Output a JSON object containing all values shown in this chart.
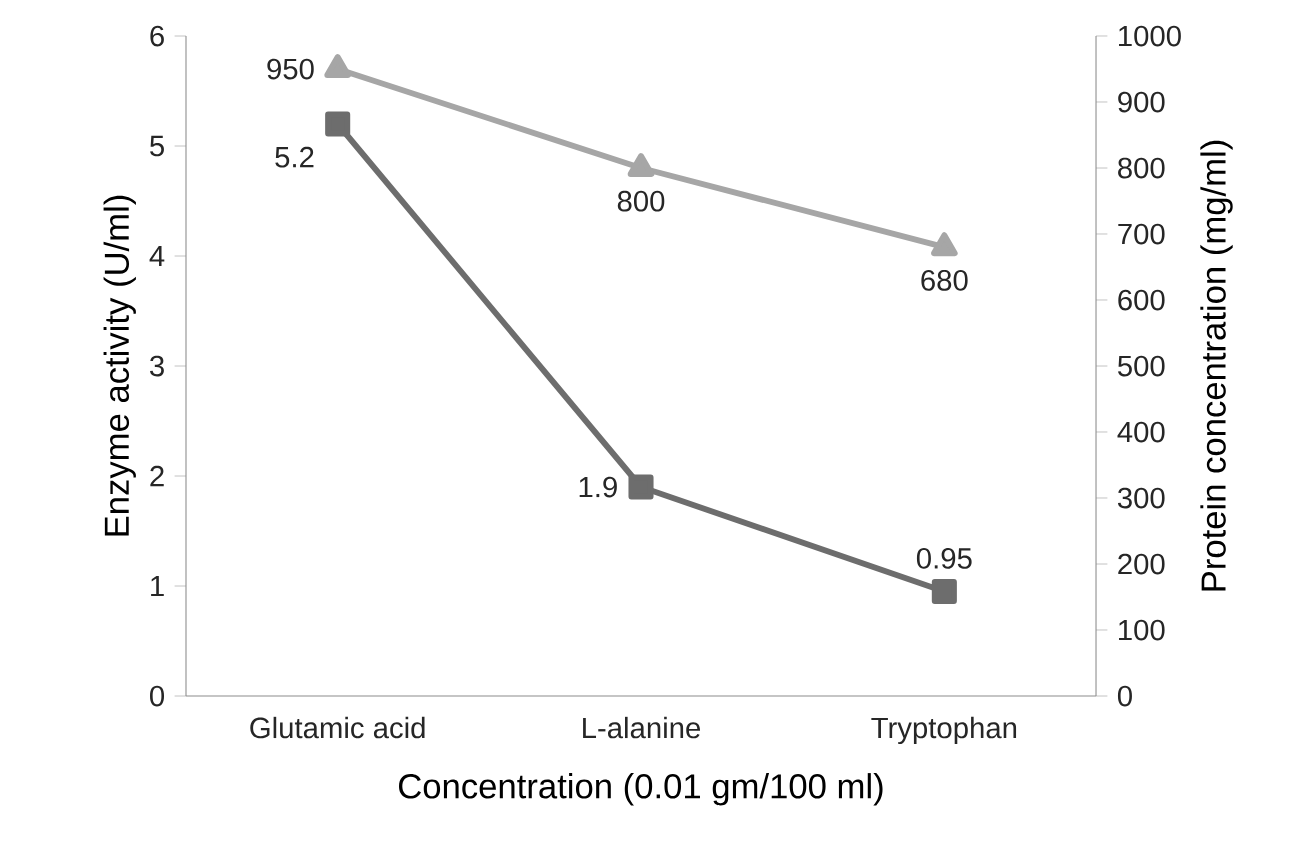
{
  "chart_data": {
    "type": "line",
    "xlabel": "Concentration    (0.01 gm/100 ml)",
    "ylabel": "Enzyme activity (U/ml)",
    "y2label": "Protein concentration (mg/ml)",
    "categories": [
      "Glutamic acid",
      "L-alanine",
      "Tryptophan"
    ],
    "series": [
      {
        "color": "#6d6d6d",
        "marker": "square",
        "axis": "y",
        "values": [
          5.2,
          1.9,
          0.95
        ]
      },
      {
        "color": "#a6a6a6",
        "marker": "triangle",
        "axis": "y2",
        "values": [
          950,
          800,
          680
        ]
      }
    ],
    "ylim": [
      0,
      6
    ],
    "yticks": [
      0,
      1,
      2,
      3,
      4,
      5,
      6
    ],
    "y2lim": [
      0,
      1000
    ],
    "y2ticks": [
      0,
      100,
      200,
      300,
      400,
      500,
      600,
      700,
      800,
      900,
      1000
    ],
    "data_labels": true
  }
}
